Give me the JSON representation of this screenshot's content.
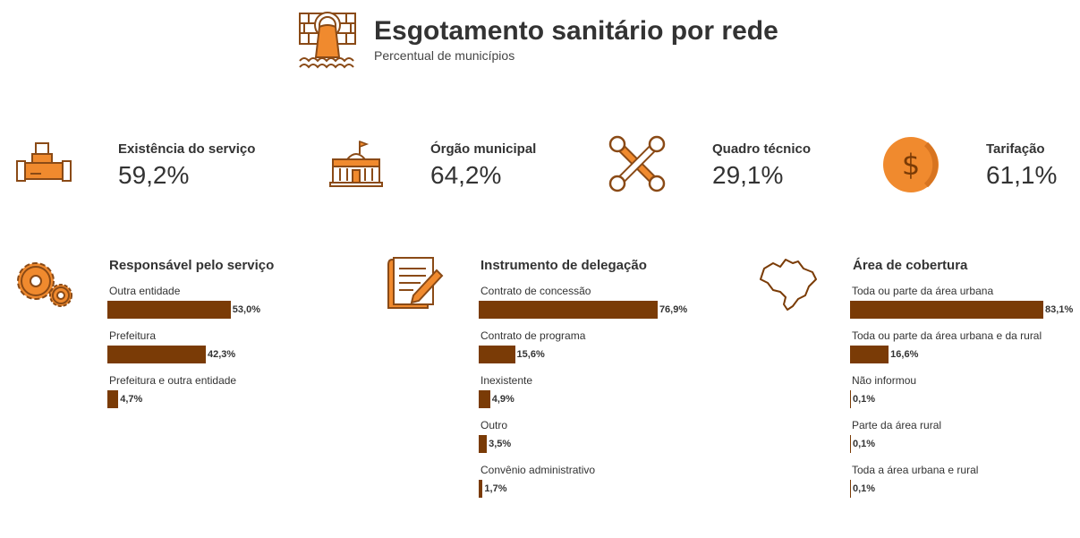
{
  "header": {
    "title": "Esgotamento sanitário por rede",
    "subtitle": "Percentual de municípios",
    "icon": "sewer-pipe-icon"
  },
  "kpis": [
    {
      "label": "Existência do serviço",
      "value": "59,2%",
      "icon": "pipe-icon"
    },
    {
      "label": "Órgão municipal",
      "value": "64,2%",
      "icon": "city-hall-icon"
    },
    {
      "label": "Quadro técnico",
      "value": "29,1%",
      "icon": "wrench-tools-icon"
    },
    {
      "label": "Tarifação",
      "value": "61,1%",
      "icon": "dollar-coin-icon"
    }
  ],
  "colors": {
    "bar": "#7a3b06",
    "icon_fill": "#f08a2e",
    "icon_stroke": "#8a4a16",
    "text": "#333333"
  },
  "chart_data": [
    {
      "type": "bar",
      "orientation": "horizontal",
      "title": "Responsável pelo serviço",
      "icon": "gears-icon",
      "xlim": [
        0,
        100
      ],
      "categories": [
        "Outra entidade",
        "Prefeitura",
        "Prefeitura e outra entidade"
      ],
      "values": [
        53.0,
        42.3,
        4.7
      ],
      "value_labels": [
        "53,0%",
        "42,3%",
        "4,7%"
      ]
    },
    {
      "type": "bar",
      "orientation": "horizontal",
      "title": "Instrumento de delegação",
      "icon": "contract-document-icon",
      "xlim": [
        0,
        100
      ],
      "categories": [
        "Contrato de concessão",
        "Contrato de programa",
        "Inexistente",
        "Outro",
        "Convênio administrativo"
      ],
      "values": [
        76.9,
        15.6,
        4.9,
        3.5,
        1.7
      ],
      "value_labels": [
        "76,9%",
        "15,6%",
        "4,9%",
        "3,5%",
        "1,7%"
      ]
    },
    {
      "type": "bar",
      "orientation": "horizontal",
      "title": "Área de cobertura",
      "icon": "brazil-map-icon",
      "xlim": [
        0,
        100
      ],
      "categories": [
        "Toda ou parte da área urbana",
        "Toda ou parte da área urbana e da rural",
        "Não informou",
        "Parte da área rural",
        "Toda a área urbana e rural"
      ],
      "values": [
        83.1,
        16.6,
        0.1,
        0.1,
        0.1
      ],
      "value_labels": [
        "83,1%",
        "16,6%",
        "0,1%",
        "0,1%",
        "0,1%"
      ]
    }
  ]
}
